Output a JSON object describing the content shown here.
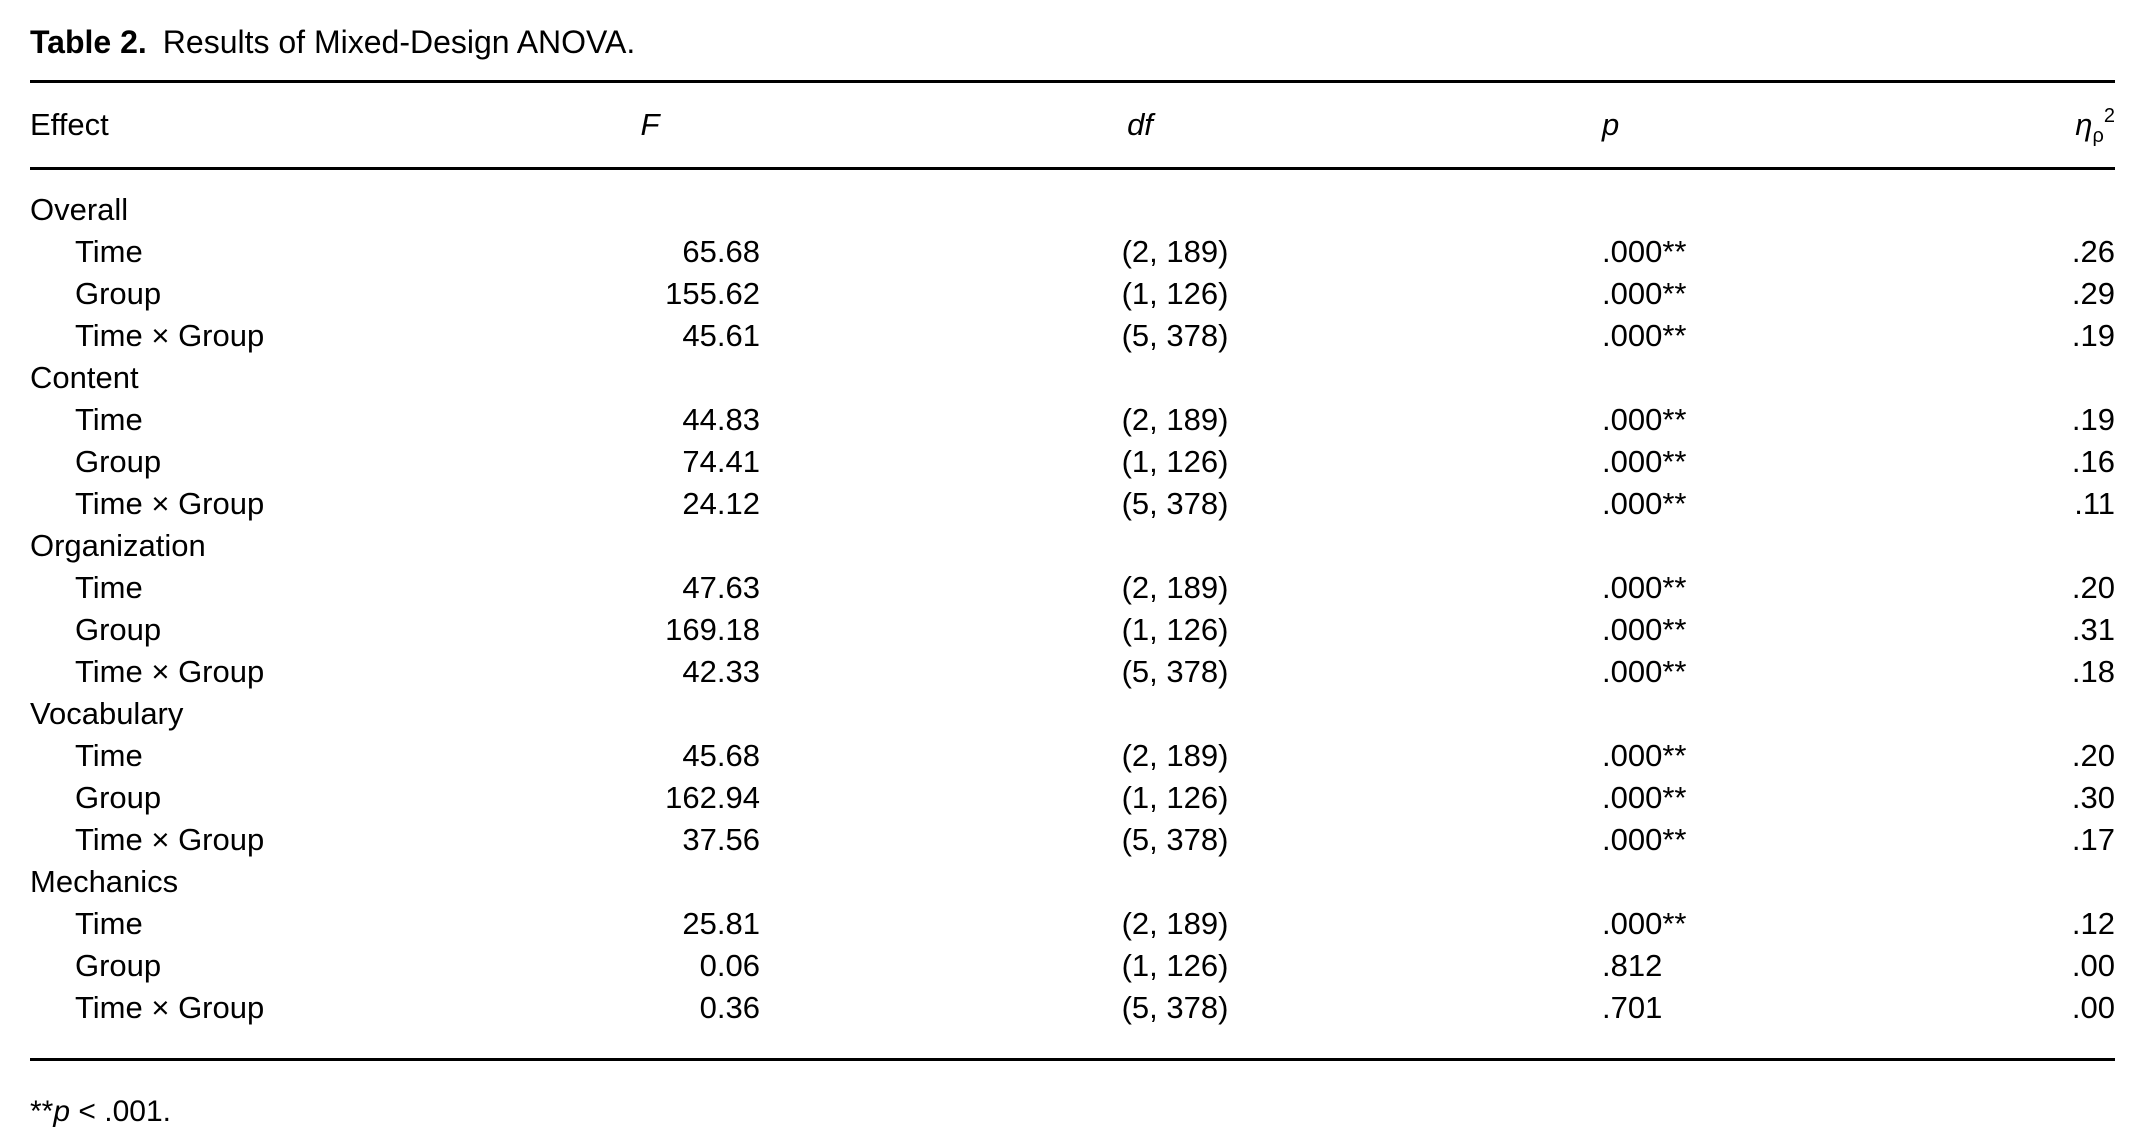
{
  "page": {
    "title_label": "Table 2.",
    "title_text": "Results of Mixed-Design ANOVA."
  },
  "header": {
    "effect": "Effect",
    "f": "F",
    "df": "df",
    "p": "p",
    "eta_base": "η",
    "eta_sub": "ρ",
    "eta_sup": "2"
  },
  "sections": [
    {
      "name": "Overall",
      "rows": [
        {
          "effect": "Time",
          "f": "65.68",
          "df": "(2, 189)",
          "p": ".000**",
          "eta": ".26"
        },
        {
          "effect": "Group",
          "f": "155.62",
          "df": "(1, 126)",
          "p": ".000**",
          "eta": ".29"
        },
        {
          "effect": "Time × Group",
          "f": "45.61",
          "df": "(5, 378)",
          "p": ".000**",
          "eta": ".19"
        }
      ]
    },
    {
      "name": "Content",
      "rows": [
        {
          "effect": "Time",
          "f": "44.83",
          "df": "(2, 189)",
          "p": ".000**",
          "eta": ".19"
        },
        {
          "effect": "Group",
          "f": "74.41",
          "df": "(1, 126)",
          "p": ".000**",
          "eta": ".16"
        },
        {
          "effect": "Time × Group",
          "f": "24.12",
          "df": "(5, 378)",
          "p": ".000**",
          "eta": ".11"
        }
      ]
    },
    {
      "name": "Organization",
      "rows": [
        {
          "effect": "Time",
          "f": "47.63",
          "df": "(2, 189)",
          "p": ".000**",
          "eta": ".20"
        },
        {
          "effect": "Group",
          "f": "169.18",
          "df": "(1, 126)",
          "p": ".000**",
          "eta": ".31"
        },
        {
          "effect": "Time × Group",
          "f": "42.33",
          "df": "(5, 378)",
          "p": ".000**",
          "eta": ".18"
        }
      ]
    },
    {
      "name": "Vocabulary",
      "rows": [
        {
          "effect": "Time",
          "f": "45.68",
          "df": "(2, 189)",
          "p": ".000**",
          "eta": ".20"
        },
        {
          "effect": "Group",
          "f": "162.94",
          "df": "(1, 126)",
          "p": ".000**",
          "eta": ".30"
        },
        {
          "effect": "Time × Group",
          "f": "37.56",
          "df": "(5, 378)",
          "p": ".000**",
          "eta": ".17"
        }
      ]
    },
    {
      "name": "Mechanics",
      "rows": [
        {
          "effect": "Time",
          "f": "25.81",
          "df": "(2, 189)",
          "p": ".000**",
          "eta": ".12"
        },
        {
          "effect": "Group",
          "f": "0.06",
          "df": "(1, 126)",
          "p": ".812",
          "eta": ".00"
        },
        {
          "effect": "Time × Group",
          "f": "0.36",
          "df": "(5, 378)",
          "p": ".701",
          "eta": ".00"
        }
      ]
    }
  ],
  "footnote": {
    "marker": "**",
    "p_symbol": "p",
    "text": " < .001."
  }
}
